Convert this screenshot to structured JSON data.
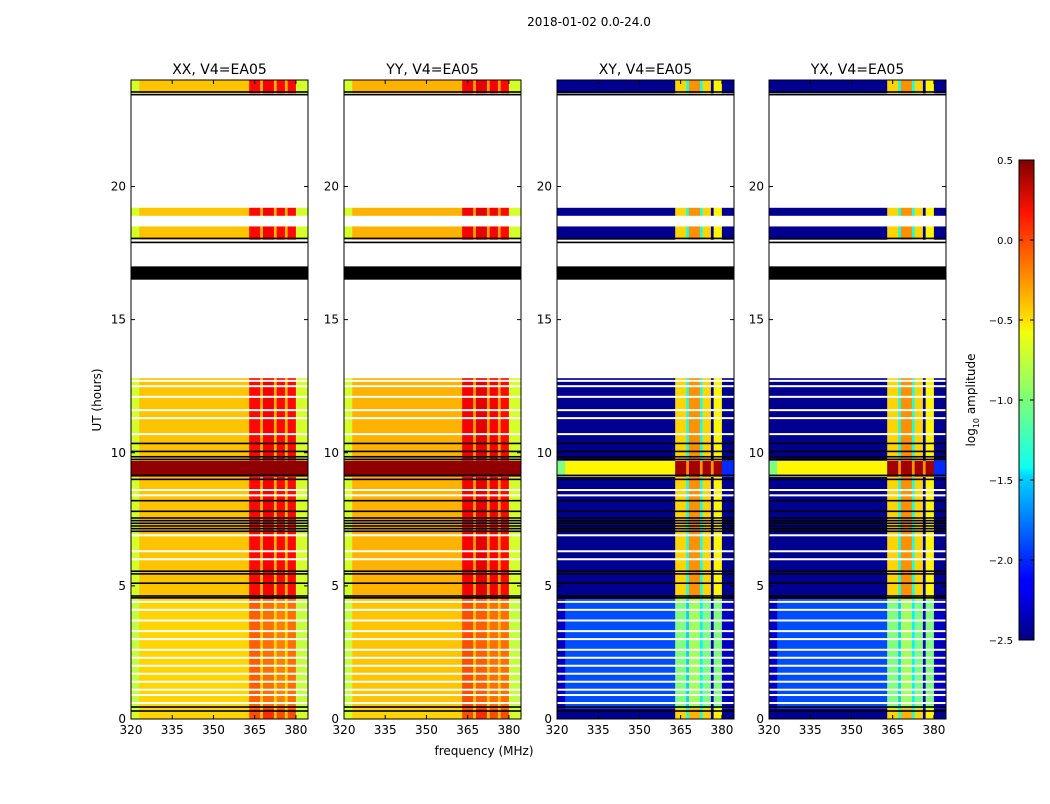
{
  "chart_data": {
    "type": "heatmap",
    "suptitle": "2018-01-02 0.0-24.0",
    "xlabel": "frequency (MHz)",
    "ylabel": "UT (hours)",
    "xlim": [
      320,
      384.4
    ],
    "ylim": [
      0,
      24
    ],
    "xticks": [
      "320",
      "335",
      "350",
      "365",
      "380"
    ],
    "xtick_values": [
      320,
      335,
      350,
      365,
      380
    ],
    "yticks": [
      "0",
      "5",
      "10",
      "15",
      "20"
    ],
    "ytick_values": [
      0,
      5,
      10,
      15,
      20
    ],
    "colorbar": {
      "label_main": "log",
      "label_sub": "10",
      "label_rest": " amplitude",
      "range": [
        -2.5,
        0.5
      ],
      "ticks": [
        "0.5",
        "0.0",
        "−0.5",
        "−1.0",
        "−1.5",
        "−2.0",
        "−2.5"
      ],
      "tick_values": [
        0.5,
        0.0,
        -0.5,
        -1.0,
        -1.5,
        -2.0,
        -2.5
      ],
      "colormap": "jet"
    },
    "freq_segments": [
      [
        320,
        323
      ],
      [
        323,
        363
      ],
      [
        363,
        367
      ],
      [
        367,
        368
      ],
      [
        368,
        372
      ],
      [
        372,
        373
      ],
      [
        373,
        376
      ],
      [
        376,
        377
      ],
      [
        377,
        380
      ],
      [
        380,
        384.4
      ]
    ],
    "time_blocks": [
      {
        "t": [
          0,
          0.4
        ],
        "kind": "edge"
      },
      {
        "t": [
          0.4,
          4.5
        ],
        "kind": "low"
      },
      {
        "t": [
          4.5,
          9.1
        ],
        "kind": "mid"
      },
      {
        "t": [
          9.1,
          9.7
        ],
        "kind": "rfi"
      },
      {
        "t": [
          9.7,
          12.8
        ],
        "kind": "mid"
      },
      {
        "t": [
          18.0,
          18.5
        ],
        "kind": "mid"
      },
      {
        "t": [
          18.9,
          19.2
        ],
        "kind": "mid"
      },
      {
        "t": [
          23.5,
          24.0
        ],
        "kind": "mid"
      }
    ],
    "flagged_band": [
      16.5,
      17.0
    ],
    "flag_lines": [
      0.3,
      0.45,
      4.55,
      4.62,
      5.1,
      5.45,
      5.55,
      7.05,
      7.15,
      7.25,
      7.35,
      7.45,
      7.55,
      7.8,
      8.2,
      9.0,
      9.15,
      9.75,
      9.85,
      10.05,
      10.35,
      17.9,
      18.05,
      23.45,
      23.55
    ],
    "gap_lines": [
      0.6,
      0.9,
      1.1,
      1.4,
      1.7,
      2.0,
      2.3,
      2.6,
      3.0,
      3.3,
      3.7,
      4.1,
      4.4,
      6.0,
      6.3,
      6.9,
      8.4,
      8.6,
      10.7,
      11.3,
      11.6,
      12.1,
      12.5,
      12.7
    ],
    "panels": [
      {
        "title": "XX, V4=EA05",
        "values": {
          "edge": [
            -0.75,
            -0.5,
            -0.1,
            -0.45,
            0.0,
            -0.45,
            -0.1,
            -0.45,
            -0.1,
            -0.75
          ],
          "low": [
            -0.8,
            -0.5,
            -0.15,
            -0.5,
            -0.2,
            -0.5,
            -0.25,
            -0.5,
            -0.2,
            -0.8
          ],
          "mid": [
            -0.75,
            -0.45,
            0.1,
            -0.4,
            0.15,
            -0.4,
            0.1,
            -0.4,
            0.1,
            -0.75
          ],
          "rfi": [
            0.45,
            0.45,
            0.45,
            0.45,
            0.45,
            0.45,
            0.45,
            0.45,
            0.45,
            0.45
          ]
        }
      },
      {
        "title": "YY, V4=EA05",
        "values": {
          "edge": [
            -0.75,
            -0.5,
            -0.1,
            -0.45,
            0.0,
            -0.45,
            -0.1,
            -0.45,
            -0.1,
            -0.75
          ],
          "low": [
            -0.8,
            -0.45,
            -0.1,
            -0.45,
            -0.15,
            -0.45,
            -0.2,
            -0.45,
            -0.2,
            -0.8
          ],
          "mid": [
            -0.75,
            -0.4,
            0.15,
            -0.35,
            0.2,
            -0.35,
            0.15,
            -0.35,
            0.1,
            -0.75
          ],
          "rfi": [
            0.45,
            0.45,
            0.45,
            0.45,
            0.45,
            0.45,
            0.45,
            0.45,
            0.45,
            0.45
          ]
        }
      },
      {
        "title": "XY, V4=EA05",
        "values": {
          "edge": [
            -2.45,
            -2.45,
            -0.5,
            -1.3,
            -0.4,
            -1.3,
            -0.5,
            -2.4,
            -0.6,
            -2.45
          ],
          "low": [
            -2.3,
            -1.9,
            -1.0,
            -1.5,
            -0.9,
            -1.4,
            -1.0,
            -2.3,
            -1.0,
            -2.3
          ],
          "mid": [
            -2.45,
            -2.45,
            -0.5,
            -1.3,
            -0.3,
            -1.3,
            -0.5,
            -2.4,
            -0.6,
            -2.45
          ],
          "rfi": [
            -1.0,
            -0.6,
            0.4,
            -0.3,
            0.4,
            -0.3,
            0.4,
            -0.3,
            0.4,
            -2.0
          ]
        }
      },
      {
        "title": "YX, V4=EA05",
        "values": {
          "edge": [
            -2.45,
            -2.45,
            -0.5,
            -1.3,
            -0.4,
            -1.3,
            -0.5,
            -2.4,
            -0.6,
            -2.45
          ],
          "low": [
            -2.3,
            -1.9,
            -1.0,
            -1.5,
            -0.9,
            -1.4,
            -1.0,
            -2.3,
            -1.0,
            -2.3
          ],
          "mid": [
            -2.45,
            -2.45,
            -0.5,
            -1.3,
            -0.3,
            -1.3,
            -0.5,
            -2.4,
            -0.6,
            -2.45
          ],
          "rfi": [
            -1.0,
            -0.6,
            0.4,
            -0.3,
            0.4,
            -0.3,
            0.4,
            -0.3,
            0.4,
            -2.0
          ]
        }
      }
    ]
  }
}
